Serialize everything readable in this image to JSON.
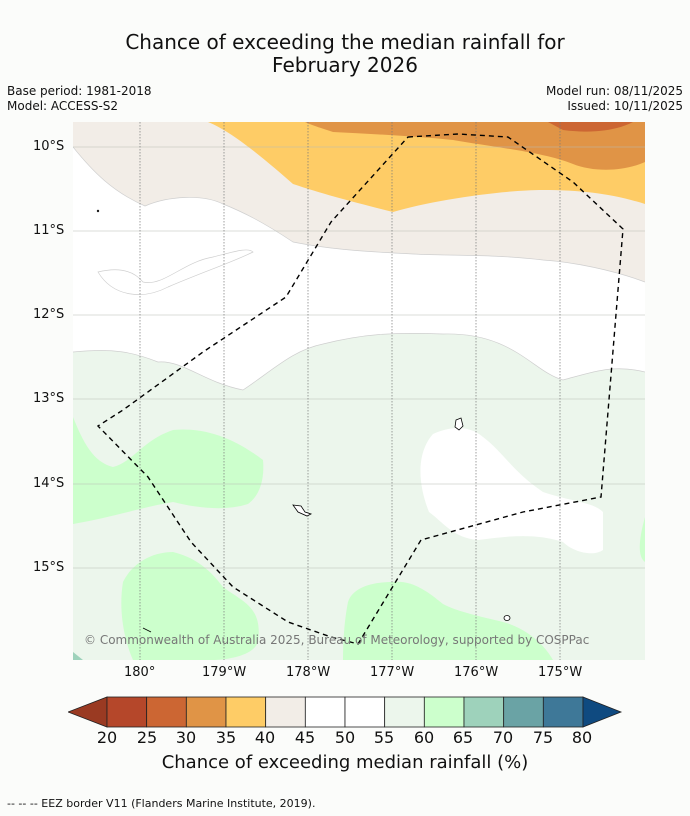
{
  "title": {
    "line1": "Chance of exceeding the median rainfall for",
    "line2": "February 2026"
  },
  "meta": {
    "base_period": "Base period: 1981-2018",
    "model": "Model: ACCESS-S2",
    "model_run": "Model run: 08/11/2025",
    "issued": "Issued: 10/11/2025"
  },
  "map": {
    "lat_labels": [
      "10°S",
      "11°S",
      "12°S",
      "13°S",
      "14°S",
      "15°S"
    ],
    "lon_labels": [
      "180°",
      "179°W",
      "178°W",
      "177°W",
      "176°W",
      "175°W"
    ],
    "copyright": "© Commonwealth of Australia 2025, Bureau of Meteorology, supported by COSPPac"
  },
  "colorbar": {
    "label": "Chance of exceeding median rainfall (%)",
    "ticks": [
      "20",
      "25",
      "30",
      "35",
      "40",
      "45",
      "50",
      "55",
      "60",
      "65",
      "70",
      "75",
      "80"
    ],
    "low_color": "#9a3a22",
    "high_color": "#0f4a80",
    "colors": [
      "#b5472a",
      "#cc6633",
      "#e09446",
      "#fecc66",
      "#f2ede7",
      "#ffffff",
      "#ffffff",
      "#ecf6ec",
      "#ccffcc",
      "#9ed2bb",
      "#6aa3a5",
      "#3e7898"
    ]
  },
  "legend": {
    "eez_text": "--  --  -- EEZ border V11 (Flanders Marine Institute, 2019)."
  }
}
